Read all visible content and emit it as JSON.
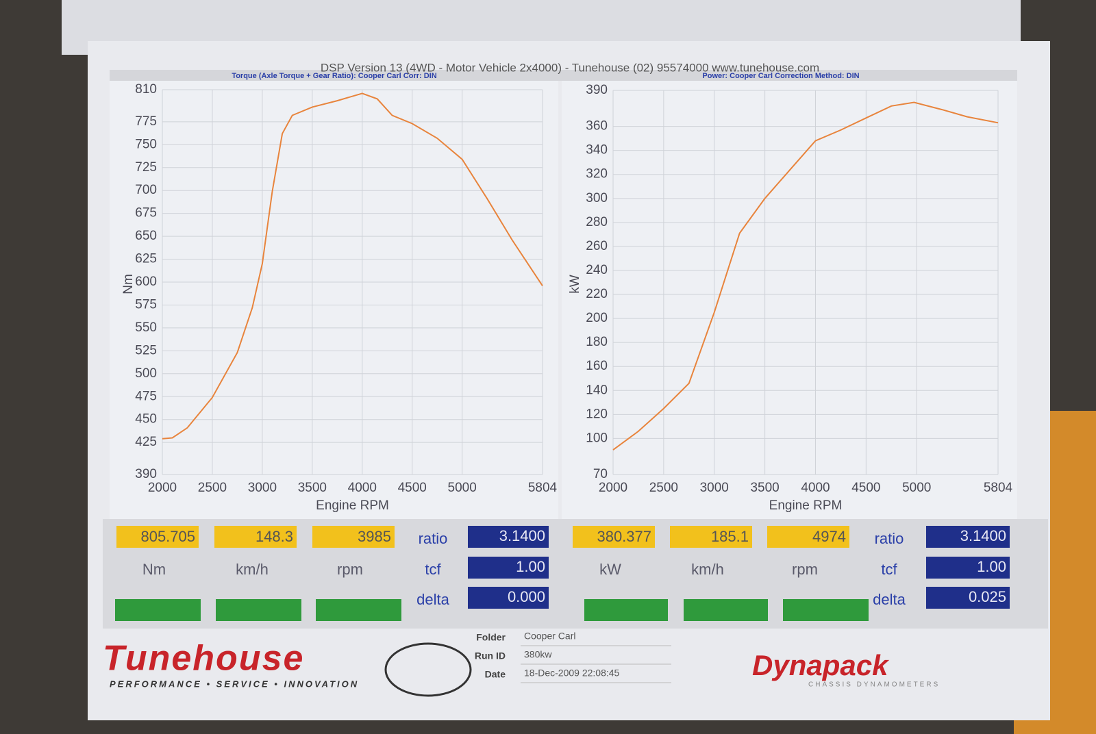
{
  "header": {
    "title": "DSP Version 13 (4WD - Motor Vehicle 2x4000) - Tunehouse (02) 95574000  www.tunehouse.com"
  },
  "chart_data": [
    {
      "type": "line",
      "subtitle": "Torque (Axle Torque + Gear Ratio): Cooper Carl     Corr: DIN",
      "xlabel": "Engine RPM",
      "ylabel": "Nm",
      "color": "#e8843c",
      "grid": true,
      "x": [
        2000,
        2100,
        2250,
        2500,
        2750,
        2900,
        3000,
        3100,
        3200,
        3300,
        3500,
        3750,
        4000,
        4150,
        4300,
        4500,
        4750,
        5000,
        5250,
        5500,
        5804
      ],
      "values": [
        429,
        430,
        441,
        474,
        523,
        572,
        620,
        699,
        762,
        782,
        791,
        798,
        806,
        800,
        782,
        773,
        757,
        734,
        691,
        646,
        596
      ],
      "xlim": [
        2000,
        5804
      ],
      "xticks": [
        2000,
        2500,
        3000,
        3500,
        4000,
        4500,
        5000,
        5804
      ],
      "ylim": [
        390,
        810
      ],
      "yticks": [
        390,
        425,
        450,
        475,
        500,
        525,
        550,
        575,
        600,
        625,
        650,
        675,
        700,
        725,
        750,
        775,
        810
      ]
    },
    {
      "type": "line",
      "subtitle": "Power: Cooper Carl     Correction Method: DIN",
      "xlabel": "Engine RPM",
      "ylabel": "kW",
      "color": "#e8843c",
      "grid": true,
      "x": [
        2000,
        2250,
        2500,
        2750,
        3000,
        3250,
        3500,
        3750,
        4000,
        4250,
        4500,
        4750,
        4974,
        5250,
        5500,
        5804
      ],
      "values": [
        90.5,
        106,
        125,
        146,
        205,
        271,
        300,
        324,
        348,
        357,
        367,
        377,
        380,
        374,
        368,
        363
      ],
      "xlim": [
        2000,
        5804
      ],
      "xticks": [
        2000,
        2500,
        3000,
        3500,
        4000,
        4500,
        5000,
        5804
      ],
      "ylim": [
        70,
        390
      ],
      "yticks": [
        70,
        100,
        120,
        140,
        160,
        180,
        200,
        220,
        240,
        260,
        280,
        300,
        320,
        340,
        360,
        390
      ]
    }
  ],
  "readouts": [
    {
      "values": [
        "805.705",
        "148.3",
        "3985"
      ],
      "units": [
        "Nm",
        "km/h",
        "rpm"
      ],
      "ratio_label": "ratio",
      "ratio": "3.1400",
      "tcf_label": "tcf",
      "tcf": "1.00",
      "delta_label": "delta",
      "delta": "0.000"
    },
    {
      "values": [
        "380.377",
        "185.1",
        "4974"
      ],
      "units": [
        "kW",
        "km/h",
        "rpm"
      ],
      "ratio_label": "ratio",
      "ratio": "3.1400",
      "tcf_label": "tcf",
      "tcf": "1.00",
      "delta_label": "delta",
      "delta": "0.025"
    }
  ],
  "footer": {
    "brand": "Tunehouse",
    "tagline": "PERFORMANCE • SERVICE • INNOVATION",
    "fields": [
      {
        "label": "Folder",
        "value": "Cooper Carl"
      },
      {
        "label": "Run ID",
        "value": "380kw"
      },
      {
        "label": "Date",
        "value": "18-Dec-2009 22:08:45"
      }
    ],
    "maker": "Dynapack",
    "maker_sub": "CHASSIS DYNAMOMETERS"
  }
}
